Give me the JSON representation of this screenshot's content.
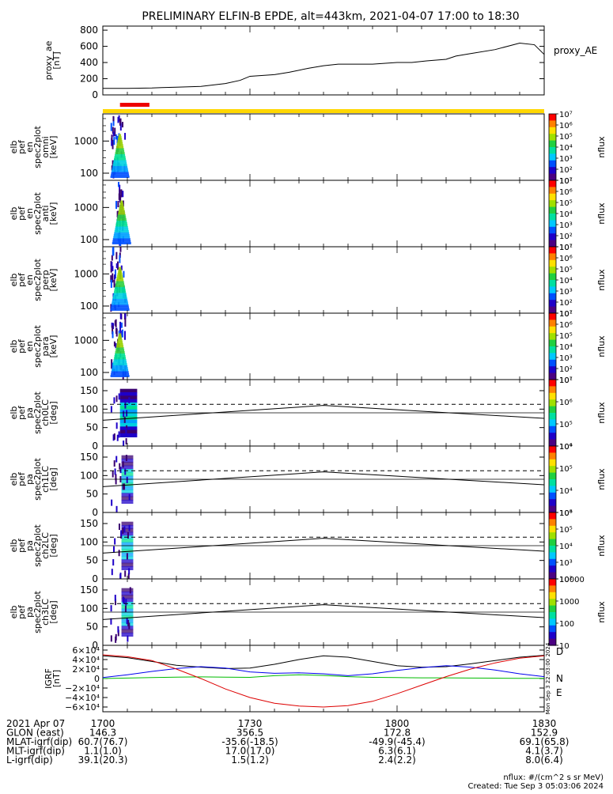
{
  "title": "PRELIMINARY ELFIN-B EPDE, alt=443km, 2021-04-07 17:00 to 18:30",
  "colors": {
    "bar_yellow": "#ffd700",
    "bar_red": "#ee0000",
    "trace": "#000000",
    "grf_black": "#000000",
    "grf_red": "#dd0000",
    "grf_blue": "#0000ee",
    "grf_green": "#00bb00",
    "colorbar": [
      "#ffffff",
      "#4b0082",
      "#1e00c8",
      "#0050ff",
      "#00c8ff",
      "#00e0a0",
      "#20d040",
      "#a0e000",
      "#ffe000",
      "#ff8000",
      "#ff0000"
    ]
  },
  "time_axis": {
    "start": "17:00",
    "end": "18:30",
    "ticks": [
      "1700",
      "1730",
      "1800",
      "1830"
    ]
  },
  "chart_data": [
    {
      "type": "line",
      "id": "proxy_ae",
      "ylabel_lines": [
        "proxy_ae",
        "[nT]"
      ],
      "ylim": [
        0,
        850
      ],
      "yticks": [
        0,
        200,
        400,
        600,
        800
      ],
      "legend": "proxy_AE",
      "x_minutes": [
        0,
        5,
        10,
        12,
        15,
        20,
        25,
        28,
        30,
        35,
        38,
        42,
        45,
        48,
        50,
        55,
        60,
        63,
        66,
        70,
        72,
        75,
        80,
        85,
        88,
        90
      ],
      "values": [
        80,
        80,
        85,
        90,
        95,
        105,
        140,
        180,
        230,
        250,
        280,
        330,
        360,
        380,
        380,
        380,
        400,
        400,
        420,
        440,
        480,
        510,
        560,
        640,
        620,
        500
      ]
    },
    {
      "type": "heatmap",
      "id": "spec_omni",
      "ylabel_lines": [
        "elb",
        "pef",
        "en",
        "spec2plot",
        "omni",
        "[keV]"
      ],
      "ylim": [
        60,
        7000
      ],
      "log_y": true,
      "yticks": [
        "100",
        "1000"
      ],
      "colorbar": {
        "label": "nflux",
        "ticks": [
          "10⁷",
          "10⁶",
          "10⁵",
          "10⁴",
          "10³",
          "10²",
          "10¹"
        ]
      },
      "active_minutes": [
        1.5,
        4.5
      ]
    },
    {
      "type": "heatmap",
      "id": "spec_anti",
      "ylabel_lines": [
        "elb",
        "pef",
        "en",
        "spec2plot",
        "anti",
        "[keV]"
      ],
      "ylim": [
        60,
        7000
      ],
      "log_y": true,
      "yticks": [
        "100",
        "1000"
      ],
      "colorbar": {
        "label": "nflux",
        "ticks": [
          "10⁷",
          "10⁶",
          "10⁵",
          "10⁴",
          "10³",
          "10²",
          "10¹"
        ]
      },
      "active_minutes": [
        2.5,
        4.2
      ]
    },
    {
      "type": "heatmap",
      "id": "spec_perp",
      "ylabel_lines": [
        "elb",
        "pef",
        "en",
        "spec2plot",
        "perp",
        "[keV]"
      ],
      "ylim": [
        60,
        7000
      ],
      "log_y": true,
      "yticks": [
        "100",
        "1000"
      ],
      "colorbar": {
        "label": "nflux",
        "ticks": [
          "10⁷",
          "10⁶",
          "10⁵",
          "10⁴",
          "10³",
          "10²",
          "10¹"
        ]
      },
      "active_minutes": [
        1.5,
        4.5
      ]
    },
    {
      "type": "heatmap",
      "id": "spec_para",
      "ylabel_lines": [
        "elb",
        "pef",
        "en",
        "spec2plot",
        "para",
        "[keV]"
      ],
      "ylim": [
        60,
        7000
      ],
      "log_y": true,
      "yticks": [
        "100",
        "1000"
      ],
      "colorbar": {
        "label": "nflux",
        "ticks": [
          "10⁷",
          "10⁶",
          "10⁵",
          "10⁴",
          "10³",
          "10²",
          "10¹"
        ]
      },
      "active_minutes": [
        1.5,
        4.5
      ]
    },
    {
      "type": "heatmap",
      "id": "pa_ch0",
      "ylabel_lines": [
        "elb",
        "pef",
        "pa",
        "spec2plot",
        "ch0LC",
        "[deg]"
      ],
      "ylim": [
        0,
        180
      ],
      "yticks": [
        0,
        50,
        100,
        150
      ],
      "colorbar": {
        "label": "nflux",
        "ticks": [
          "10⁷",
          "10⁶",
          "10⁵",
          "10⁴"
        ]
      },
      "active_minutes": [
        1.5,
        4.5
      ],
      "loss_cone_x_minutes": [
        0,
        45,
        90
      ],
      "loss_cone_deg": [
        70,
        110,
        75
      ],
      "antiloss_cone_deg": [
        113,
        113,
        113
      ]
    },
    {
      "type": "heatmap",
      "id": "pa_ch1",
      "ylabel_lines": [
        "elb",
        "pef",
        "pa",
        "spec2plot",
        "ch1LC",
        "[deg]"
      ],
      "ylim": [
        0,
        180
      ],
      "yticks": [
        0,
        50,
        100,
        150
      ],
      "colorbar": {
        "label": "nflux",
        "ticks": [
          "10⁶",
          "10⁵",
          "10⁴",
          "10³"
        ]
      },
      "active_minutes": [
        1.5,
        4.5
      ],
      "loss_cone_x_minutes": [
        0,
        45,
        90
      ],
      "loss_cone_deg": [
        70,
        110,
        75
      ],
      "antiloss_cone_deg": [
        113,
        113,
        113
      ]
    },
    {
      "type": "heatmap",
      "id": "pa_ch2",
      "ylabel_lines": [
        "elb",
        "pef",
        "pa",
        "spec2plot",
        "ch2LC",
        "[deg]"
      ],
      "ylim": [
        0,
        180
      ],
      "yticks": [
        0,
        50,
        100,
        150
      ],
      "colorbar": {
        "label": "nflux",
        "ticks": [
          "10⁶",
          "10⁵",
          "10⁴",
          "10³",
          "10²"
        ]
      },
      "active_minutes": [
        1.5,
        4.5
      ],
      "loss_cone_x_minutes": [
        0,
        45,
        90
      ],
      "loss_cone_deg": [
        70,
        110,
        75
      ],
      "antiloss_cone_deg": [
        113,
        113,
        113
      ]
    },
    {
      "type": "heatmap",
      "id": "pa_ch3",
      "ylabel_lines": [
        "elb",
        "pef",
        "pa",
        "spec2plot",
        "ch3LC",
        "[deg]"
      ],
      "ylim": [
        0,
        180
      ],
      "yticks": [
        0,
        50,
        100,
        150
      ],
      "colorbar": {
        "label": "nflux",
        "ticks": [
          "10000",
          "1000",
          "100",
          "10"
        ]
      },
      "active_minutes": [
        1.5,
        4.5
      ],
      "loss_cone_x_minutes": [
        0,
        45,
        90
      ],
      "loss_cone_deg": [
        70,
        110,
        75
      ],
      "antiloss_cone_deg": [
        113,
        113,
        113
      ]
    },
    {
      "type": "line",
      "id": "igrf",
      "ylabel_lines": [
        "IGRF",
        "[nT]"
      ],
      "ylim": [
        -70000,
        70000
      ],
      "yticks": [
        "6×10⁴",
        "4×10⁴",
        "2×10⁴",
        "0",
        "−2×10⁴",
        "−4×10⁴",
        "−6×10⁴"
      ],
      "ytick_values": [
        60000,
        40000,
        20000,
        0,
        -20000,
        -40000,
        -60000
      ],
      "legend": [
        "D",
        "N",
        "E"
      ],
      "side_note": "Mon Sep  3 22:03:00 2024",
      "x_minutes": [
        0,
        5,
        10,
        15,
        20,
        25,
        30,
        35,
        40,
        45,
        50,
        55,
        60,
        65,
        70,
        75,
        80,
        85,
        90
      ],
      "series": [
        {
          "name": "D",
          "color": "grf_black",
          "values": [
            48000,
            44000,
            36000,
            28000,
            24000,
            21000,
            22000,
            30000,
            40000,
            48000,
            45000,
            36000,
            27000,
            24000,
            25000,
            31000,
            38000,
            45000,
            49000
          ]
        },
        {
          "name": "N",
          "color": "grf_blue",
          "values": [
            2000,
            8000,
            15000,
            21000,
            25000,
            22000,
            14000,
            11000,
            12000,
            10000,
            6000,
            10000,
            17000,
            23000,
            27000,
            24000,
            18000,
            10000,
            4000
          ]
        },
        {
          "name": "E",
          "color": "grf_green",
          "values": [
            0,
            1000,
            2000,
            3000,
            3500,
            3000,
            2500,
            6000,
            8000,
            6500,
            4000,
            2500,
            2000,
            1500,
            1500,
            1000,
            800,
            500,
            500
          ]
        },
        {
          "name": "",
          "color": "grf_red",
          "values": [
            50000,
            46000,
            38000,
            20000,
            0,
            -22000,
            -40000,
            -52000,
            -58000,
            -60000,
            -57000,
            -48000,
            -32000,
            -14000,
            4000,
            20000,
            33000,
            43000,
            48000
          ]
        }
      ]
    }
  ],
  "ephemeris": {
    "rows": [
      {
        "label": "2021 Apr 07",
        "values": [
          "1700",
          "1730",
          "1800",
          "1830"
        ]
      },
      {
        "label": "GLON (east)",
        "values": [
          "146.3",
          "356.5",
          "172.8",
          "152.9"
        ]
      },
      {
        "label": "MLAT-igrf(dip)",
        "values": [
          "60.7(76.7)",
          "-35.6(-18.5)",
          "-49.9(-45.4)",
          "69.1(65.8)"
        ]
      },
      {
        "label": "MLT-igrf(dip)",
        "values": [
          "1.1(1.0)",
          "17.0(17.0)",
          "6.3(6.1)",
          "4.1(3.7)"
        ]
      },
      {
        "label": "L-igrf(dip)",
        "values": [
          "39.1(20.3)",
          "1.5(1.2)",
          "2.4(2.2)",
          "8.0(6.4)"
        ]
      }
    ]
  },
  "footer": {
    "units": "nflux: #/(cm^2 s sr MeV)",
    "created": "Created: Tue Sep  3 05:03:06 2024"
  }
}
